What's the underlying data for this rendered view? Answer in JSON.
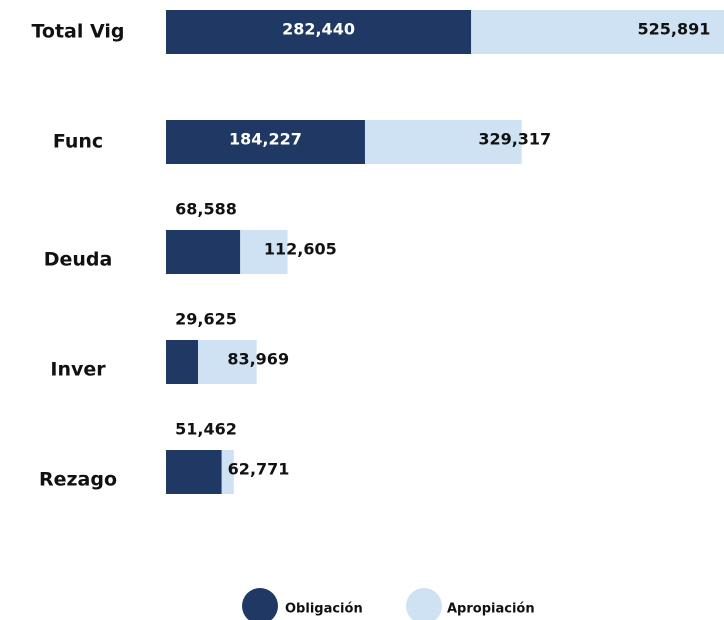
{
  "chart_data": {
    "type": "bar",
    "orientation": "horizontal",
    "categories": [
      "Total Vig",
      "Func",
      "Deuda",
      "Inver",
      "Rezago"
    ],
    "series": [
      {
        "name": "Obligación",
        "color": "#203864",
        "values": [
          282440,
          184227,
          68588,
          29625,
          51462
        ],
        "value_labels": [
          "282,440",
          "184,227",
          "68,588",
          "29,625",
          "51,462"
        ]
      },
      {
        "name": "Apropiación",
        "color": "#cfe2f3",
        "values": [
          525891,
          329317,
          112605,
          83969,
          62771
        ],
        "value_labels": [
          "525,891",
          "329,317",
          "112,605",
          "83,969",
          "62,771"
        ]
      }
    ]
  }
}
